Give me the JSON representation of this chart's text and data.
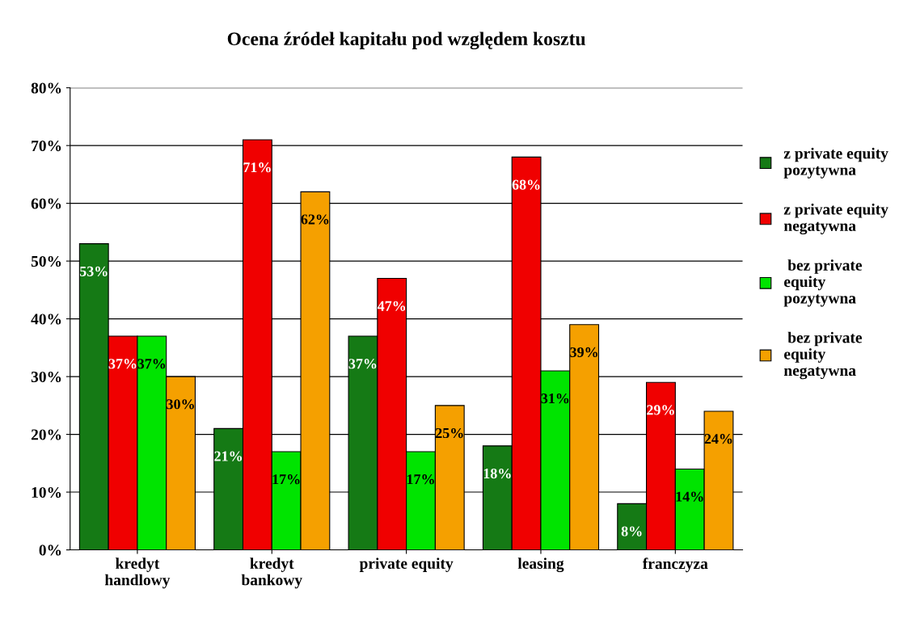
{
  "chart_data": {
    "type": "bar",
    "title": "Ocena źródeł kapitału pod względem kosztu",
    "categories": [
      "kredyt\nhandlowy",
      "kredyt\nbankowy",
      "private equity",
      "leasing",
      "franczyza"
    ],
    "series": [
      {
        "name": "z private equity\npozytywna",
        "color": "#157a15",
        "values": [
          53,
          21,
          37,
          18,
          8
        ],
        "value_labels": [
          "53%",
          "21%",
          "37%",
          "18%",
          "8%"
        ]
      },
      {
        "name": "z private equity\nnegatywna",
        "color": "#f00000",
        "values": [
          37,
          71,
          47,
          68,
          29
        ],
        "value_labels": [
          "37%",
          "71%",
          "47%",
          "68%",
          "29%"
        ]
      },
      {
        "name": " bez private\nequity\npozytywna",
        "color": "#00e400",
        "values": [
          37,
          17,
          17,
          31,
          14
        ],
        "value_labels": [
          "37%",
          "17%",
          "17%",
          "31%",
          "14%"
        ]
      },
      {
        "name": " bez private\nequity\nnegatywna",
        "color": "#f5a000",
        "values": [
          30,
          62,
          25,
          39,
          24
        ],
        "value_labels": [
          "30%",
          "62%",
          "25%",
          "39%",
          "24%"
        ]
      }
    ],
    "ylim": [
      0,
      80
    ],
    "yticks": [
      {
        "value": 0,
        "label": "0%"
      },
      {
        "value": 10,
        "label": "10%"
      },
      {
        "value": 20,
        "label": "20%"
      },
      {
        "value": 30,
        "label": "30%"
      },
      {
        "value": 40,
        "label": "40%"
      },
      {
        "value": 50,
        "label": "50%"
      },
      {
        "value": 60,
        "label": "60%"
      },
      {
        "value": 70,
        "label": "70%"
      },
      {
        "value": 80,
        "label": "80%"
      }
    ],
    "grid": "y",
    "legend": "right"
  }
}
